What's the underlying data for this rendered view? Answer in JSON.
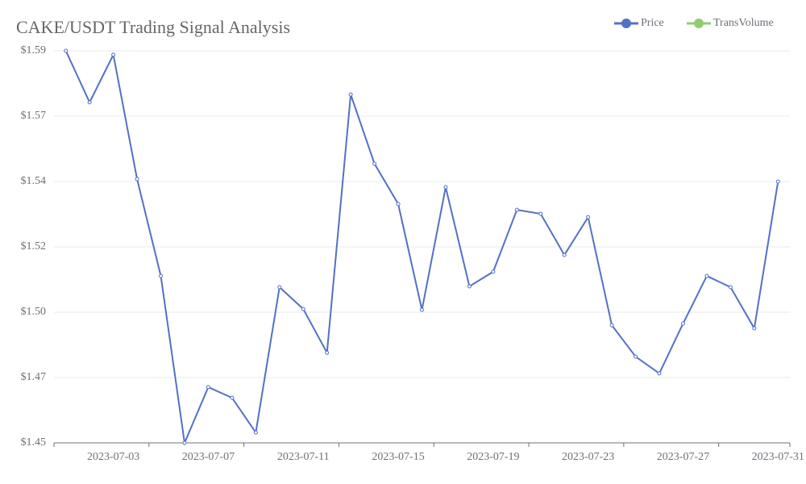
{
  "chart_data": {
    "type": "line",
    "title": "CAKE/USDT Trading Signal Analysis",
    "categories": [
      null,
      null,
      "2023-07-03",
      null,
      null,
      null,
      "2023-07-07",
      null,
      null,
      null,
      "2023-07-11",
      null,
      null,
      null,
      "2023-07-15",
      null,
      null,
      null,
      "2023-07-19",
      null,
      null,
      null,
      "2023-07-23",
      null,
      null,
      null,
      "2023-07-27",
      null,
      null,
      null,
      "2023-07-31"
    ],
    "series": [
      {
        "name": "Price",
        "color": "#5470c6",
        "values": [
          1.59,
          1.5716,
          1.5886,
          1.5442,
          1.5096,
          1.45,
          1.4699,
          1.4661,
          1.4537,
          1.5056,
          1.4978,
          1.4822,
          1.5744,
          1.5497,
          1.5353,
          1.4975,
          1.5413,
          1.5059,
          1.5111,
          1.5332,
          1.5318,
          1.5171,
          1.5306,
          1.492,
          1.4808,
          1.4748,
          1.4926,
          1.5096,
          1.5056,
          1.4909,
          1.5433
        ]
      }
    ],
    "legend": [
      {
        "name": "Price",
        "color": "#5470c6"
      },
      {
        "name": "TransVolume",
        "color": "#91cc75"
      }
    ],
    "ylim": [
      1.45,
      1.59
    ],
    "yticks": [
      {
        "value": 1.45,
        "label": "$1.45"
      },
      {
        "value": 1.47333,
        "label": "$1.47"
      },
      {
        "value": 1.49667,
        "label": "$1.50"
      },
      {
        "value": 1.52,
        "label": "$1.52"
      },
      {
        "value": 1.54333,
        "label": "$1.54"
      },
      {
        "value": 1.56667,
        "label": "$1.57"
      },
      {
        "value": 1.59,
        "label": "$1.59"
      }
    ],
    "grid": true
  }
}
